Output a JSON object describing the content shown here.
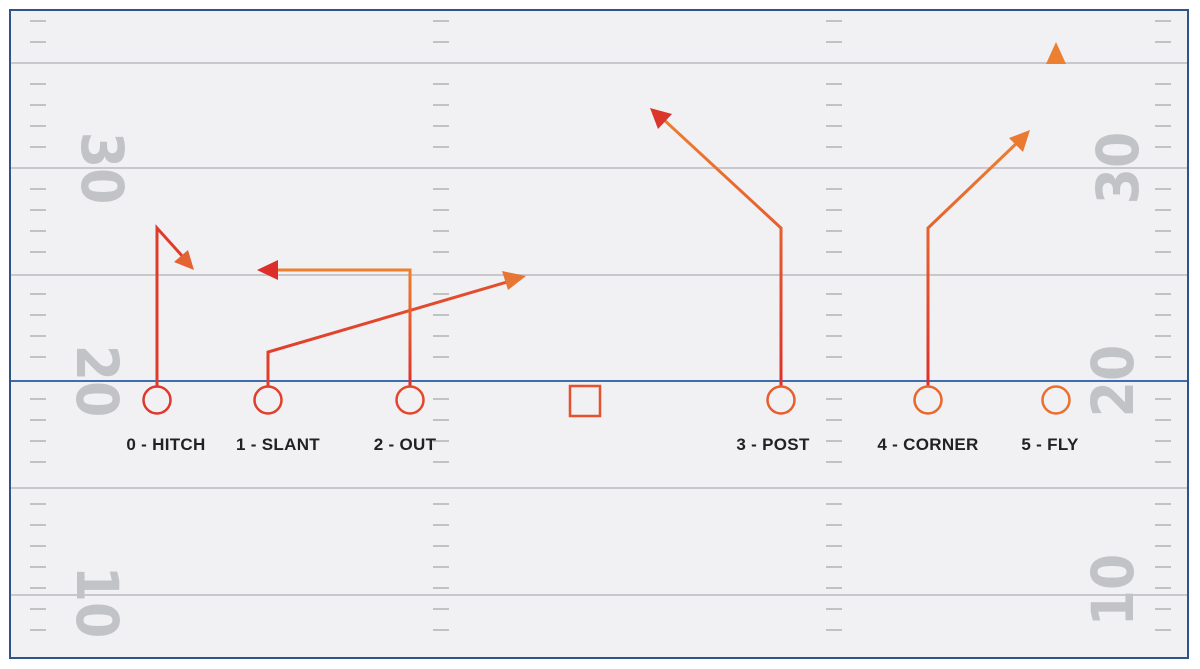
{
  "colors": {
    "field_bg": "#f1f0f2",
    "border": "#2f5487",
    "yard_line": "#c8c8cc",
    "hash": "#c2c2c6",
    "line_of_scrimmage": "#3d6cb0",
    "yard_number": "#c2c3c7",
    "route_start": "#dd2e2b",
    "route_end": "#ec7f30",
    "label": "#222222"
  },
  "yard_numbers": {
    "left_30": "30",
    "left_20": "20",
    "left_10": "10",
    "right_30": "30",
    "right_20": "20",
    "right_10": "10"
  },
  "center": {
    "icon": "square-icon"
  },
  "routes": [
    {
      "id": "hitch",
      "label": "0 - HITCH"
    },
    {
      "id": "slant",
      "label": "1 - SLANT"
    },
    {
      "id": "out",
      "label": "2 - OUT"
    },
    {
      "id": "post",
      "label": "3 - POST"
    },
    {
      "id": "corner",
      "label": "4 - CORNER"
    },
    {
      "id": "fly",
      "label": "5 - FLY"
    }
  ]
}
